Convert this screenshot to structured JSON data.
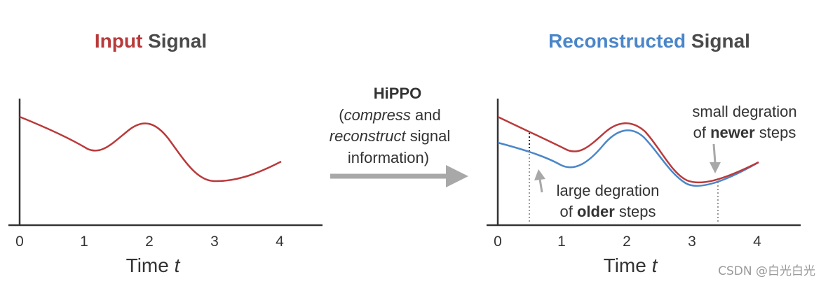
{
  "colors": {
    "input_red": "#b93a3b",
    "reconstructed_blue": "#4a86c9",
    "dark_text": "#4a4a4a",
    "axis": "#333333",
    "arrow_gray": "#a8a8a8",
    "watermark": "#9a9a9a"
  },
  "left_panel": {
    "title_highlight": "Input",
    "title_rest": " Signal",
    "tick_labels": [
      "0",
      "1",
      "2",
      "3",
      "4"
    ],
    "xlabel_prefix": "Time ",
    "xlabel_var": "t"
  },
  "middle": {
    "line1": "HiPPO",
    "line2_open": "(",
    "line2_em": "compress",
    "line2_rest": " and",
    "line3_em": "reconstruct",
    "line3_rest": " signal",
    "line4": "information)"
  },
  "right_panel": {
    "title_highlight": "Reconstructed",
    "title_rest": " Signal",
    "tick_labels": [
      "0",
      "1",
      "2",
      "3",
      "4"
    ],
    "xlabel_prefix": "Time ",
    "xlabel_var": "t",
    "annotation_newer_line1": "small degration",
    "annotation_newer_pre": "of ",
    "annotation_newer_bold": "newer",
    "annotation_newer_post": " steps",
    "annotation_older_line1": "large degration",
    "annotation_older_pre": "of ",
    "annotation_older_bold": "older",
    "annotation_older_post": " steps"
  },
  "watermark": "CSDN @白光白光"
}
